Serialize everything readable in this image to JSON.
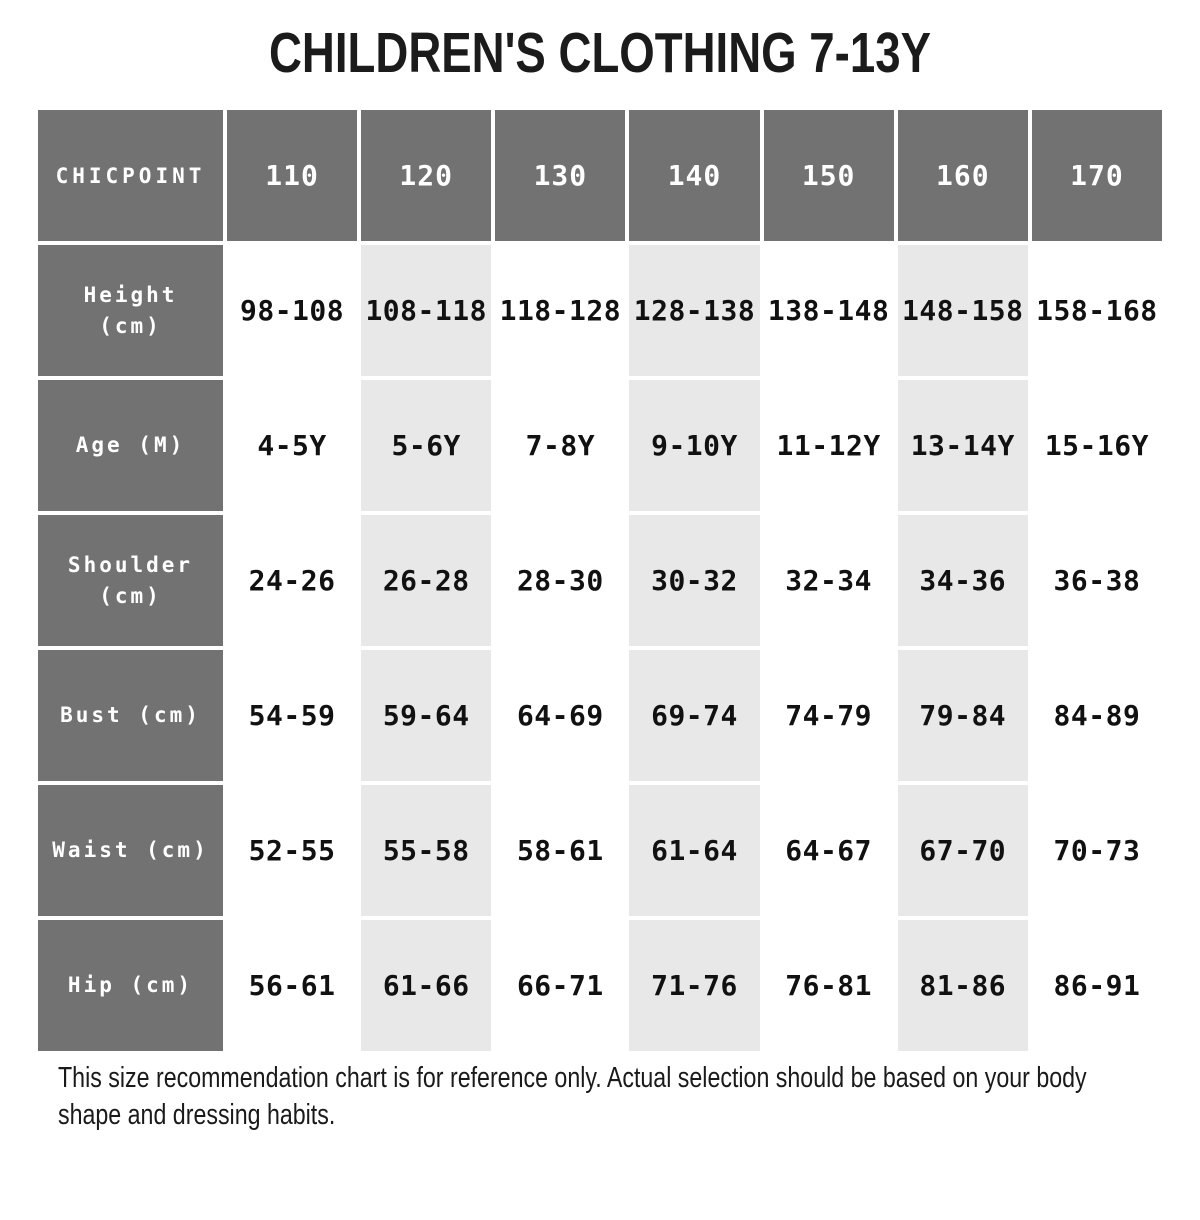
{
  "title": "CHILDREN'S CLOTHING 7-13Y",
  "table": {
    "brand": "CHICPOINT",
    "sizes": [
      "110",
      "120",
      "130",
      "140",
      "150",
      "160",
      "170"
    ],
    "rows": [
      {
        "label": "Height (cm)",
        "values": [
          "98-108",
          "108-118",
          "118-128",
          "128-138",
          "138-148",
          "148-158",
          "158-168"
        ]
      },
      {
        "label": "Age (M)",
        "values": [
          "4-5Y",
          "5-6Y",
          "7-8Y",
          "9-10Y",
          "11-12Y",
          "13-14Y",
          "15-16Y"
        ]
      },
      {
        "label": "Shoulder (cm)",
        "values": [
          "24-26",
          "26-28",
          "28-30",
          "30-32",
          "32-34",
          "34-36",
          "36-38"
        ]
      },
      {
        "label": "Bust (cm)",
        "values": [
          "54-59",
          "59-64",
          "64-69",
          "69-74",
          "74-79",
          "79-84",
          "84-89"
        ]
      },
      {
        "label": "Waist (cm)",
        "values": [
          "52-55",
          "55-58",
          "58-61",
          "61-64",
          "64-67",
          "67-70",
          "70-73"
        ]
      },
      {
        "label": "Hip (cm)",
        "values": [
          "56-61",
          "61-66",
          "66-71",
          "71-76",
          "76-81",
          "81-86",
          "86-91"
        ]
      }
    ]
  },
  "footer_note": "This size recommendation chart is for reference only. Actual selection should be based on your body shape and dressing habits.",
  "colors": {
    "header_gray": "#727272",
    "alt_cell_gray": "#e8e8e8",
    "cell_white": "#ffffff",
    "text_dark": "#111111",
    "text_light": "#ffffff"
  },
  "chart_data": {
    "type": "table",
    "title": "CHILDREN'S CLOTHING 7-13Y",
    "columns": [
      "CHICPOINT",
      "110",
      "120",
      "130",
      "140",
      "150",
      "160",
      "170"
    ],
    "rows": [
      [
        "Height (cm)",
        "98-108",
        "108-118",
        "118-128",
        "128-138",
        "138-148",
        "148-158",
        "158-168"
      ],
      [
        "Age (M)",
        "4-5Y",
        "5-6Y",
        "7-8Y",
        "9-10Y",
        "11-12Y",
        "13-14Y",
        "15-16Y"
      ],
      [
        "Shoulder (cm)",
        "24-26",
        "26-28",
        "28-30",
        "30-32",
        "32-34",
        "34-36",
        "36-38"
      ],
      [
        "Bust (cm)",
        "54-59",
        "59-64",
        "64-69",
        "69-74",
        "74-79",
        "79-84",
        "84-89"
      ],
      [
        "Waist (cm)",
        "52-55",
        "55-58",
        "58-61",
        "61-64",
        "64-67",
        "67-70",
        "70-73"
      ],
      [
        "Hip (cm)",
        "56-61",
        "61-66",
        "66-71",
        "71-76",
        "76-81",
        "81-86",
        "86-91"
      ]
    ],
    "note": "This size recommendation chart is for reference only. Actual selection should be based on your body shape and dressing habits."
  }
}
